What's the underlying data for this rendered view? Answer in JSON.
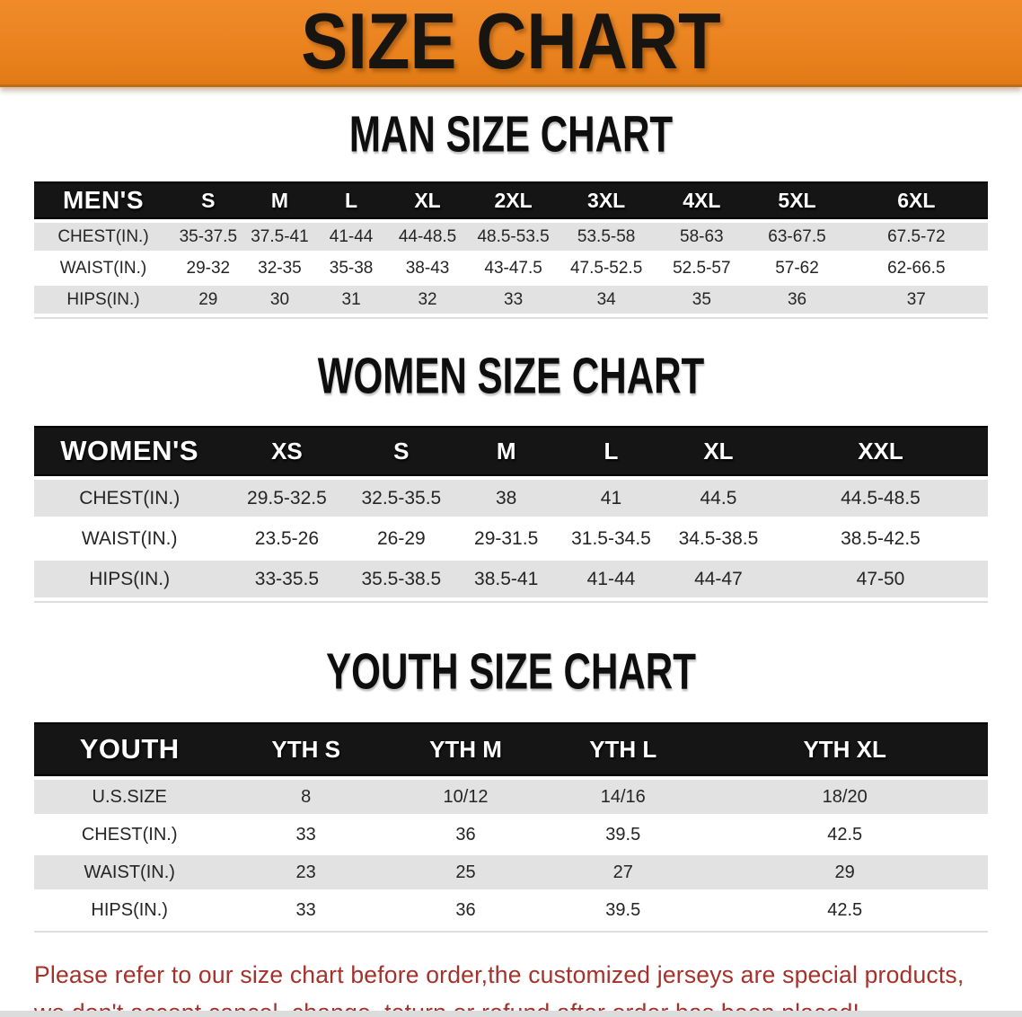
{
  "banner": {
    "title": "SIZE CHART"
  },
  "sections": [
    {
      "heading": "MAN SIZE CHART",
      "table": {
        "name": "MEN'S",
        "columns": [
          "S",
          "M",
          "L",
          "XL",
          "2XL",
          "3XL",
          "4XL",
          "5XL",
          "6XL"
        ],
        "rows": [
          {
            "label": "CHEST(IN.)",
            "values": [
              "35-37.5",
              "37.5-41",
              "41-44",
              "44-48.5",
              "48.5-53.5",
              "53.5-58",
              "58-63",
              "63-67.5",
              "67.5-72"
            ]
          },
          {
            "label": "WAIST(IN.)",
            "values": [
              "29-32",
              "32-35",
              "35-38",
              "38-43",
              "43-47.5",
              "47.5-52.5",
              "52.5-57",
              "57-62",
              "62-66.5"
            ]
          },
          {
            "label": "HIPS(IN.)",
            "values": [
              "29",
              "30",
              "31",
              "32",
              "33",
              "34",
              "35",
              "36",
              "37"
            ]
          }
        ]
      }
    },
    {
      "heading": "WOMEN SIZE CHART",
      "table": {
        "name": "WOMEN'S",
        "columns": [
          "XS",
          "S",
          "M",
          "L",
          "XL",
          "XXL"
        ],
        "rows": [
          {
            "label": "CHEST(IN.)",
            "values": [
              "29.5-32.5",
              "32.5-35.5",
              "38",
              "41",
              "44.5",
              "44.5-48.5"
            ]
          },
          {
            "label": "WAIST(IN.)",
            "values": [
              "23.5-26",
              "26-29",
              "29-31.5",
              "31.5-34.5",
              "34.5-38.5",
              "38.5-42.5"
            ]
          },
          {
            "label": "HIPS(IN.)",
            "values": [
              "33-35.5",
              "35.5-38.5",
              "38.5-41",
              "41-44",
              "44-47",
              "47-50"
            ]
          }
        ]
      }
    },
    {
      "heading": "YOUTH SIZE CHART",
      "table": {
        "name": "YOUTH",
        "columns": [
          "YTH S",
          "YTH M",
          "YTH L",
          "YTH XL"
        ],
        "rows": [
          {
            "label": "U.S.SIZE",
            "values": [
              "8",
              "10/12",
              "14/16",
              "18/20"
            ]
          },
          {
            "label": "CHEST(IN.)",
            "values": [
              "33",
              "36",
              "39.5",
              "42.5"
            ]
          },
          {
            "label": "WAIST(IN.)",
            "values": [
              "23",
              "25",
              "27",
              "29"
            ]
          },
          {
            "label": "HIPS(IN.)",
            "values": [
              "33",
              "36",
              "39.5",
              "42.5"
            ]
          }
        ]
      }
    }
  ],
  "disclaimer": {
    "line1": "Please refer to our size chart before order,the customized jerseys are special products,",
    "line2": "we don't accept cancel, change, teturn or refund after order has been placed!"
  },
  "colors": {
    "banner_orange": "#E8811C",
    "header_black": "#151515",
    "row_gray": "#E2E2E2",
    "disclaimer_red": "#A5312B"
  }
}
